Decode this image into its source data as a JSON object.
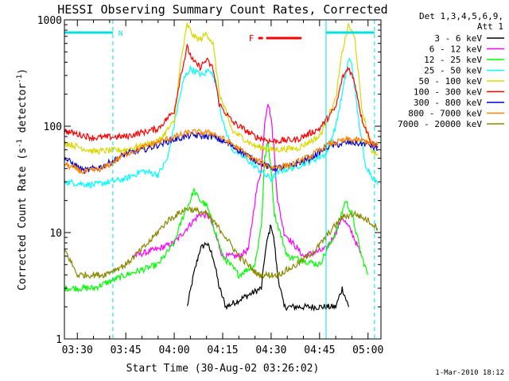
{
  "chart_data": {
    "type": "line",
    "title": "HESSI Observing Summary Count Rates, Corrected",
    "xlabel": "Start Time (30-Aug-02 03:26:02)",
    "ylabel": "Corrected Count Rate (s",
    "ylabel_sup1": "-1",
    "ylabel_mid": " detector",
    "ylabel_sup2": "-1",
    "ylabel_end": ")",
    "y_scale": "log",
    "ylim": [
      1,
      1000
    ],
    "y_ticks": [
      {
        "value": 1,
        "label": "1"
      },
      {
        "value": 10,
        "label": "10"
      },
      {
        "value": 100,
        "label": "100"
      },
      {
        "value": 1000,
        "label": "1000"
      }
    ],
    "xlim": [
      "03:26",
      "05:04"
    ],
    "x_ticks": [
      {
        "time": "03:30",
        "label": "03:30"
      },
      {
        "time": "03:45",
        "label": "03:45"
      },
      {
        "time": "04:00",
        "label": "04:00"
      },
      {
        "time": "04:15",
        "label": "04:15"
      },
      {
        "time": "04:30",
        "label": "04:30"
      },
      {
        "time": "04:45",
        "label": "04:45"
      },
      {
        "time": "05:00",
        "label": "05:00"
      }
    ],
    "legend_header": [
      "Det 1,3,4,5,6,9,",
      "Att 1"
    ],
    "series": [
      {
        "name": "3 - 6 keV",
        "color": "#000000",
        "points": [
          [
            "04:04",
            2
          ],
          [
            "04:06",
            4
          ],
          [
            "04:08",
            7
          ],
          [
            "04:10",
            8
          ],
          [
            "04:12",
            6
          ],
          [
            "04:14",
            3
          ],
          [
            "04:16",
            2
          ],
          [
            "04:27",
            3
          ],
          [
            "04:28",
            6
          ],
          [
            "04:29",
            9
          ],
          [
            "04:30",
            12
          ],
          [
            "04:31",
            8
          ],
          [
            "04:32",
            4
          ],
          [
            "04:34",
            2
          ],
          [
            "04:50",
            2
          ],
          [
            "04:52",
            3
          ],
          [
            "04:54",
            2
          ]
        ]
      },
      {
        "name": "6 - 12 keV",
        "color": "#ff00ff",
        "points": [
          [
            "03:47",
            6
          ],
          [
            "03:55",
            7
          ],
          [
            "04:00",
            8
          ],
          [
            "04:05",
            12
          ],
          [
            "04:08",
            15
          ],
          [
            "04:11",
            14
          ],
          [
            "04:13",
            9
          ],
          [
            "04:15",
            6
          ],
          [
            "04:20",
            6
          ],
          [
            "04:23",
            7
          ],
          [
            "04:25",
            20
          ],
          [
            "04:26",
            30
          ],
          [
            "04:27",
            40
          ],
          [
            "04:28",
            110
          ],
          [
            "04:29",
            170
          ],
          [
            "04:30",
            120
          ],
          [
            "04:31",
            55
          ],
          [
            "04:32",
            20
          ],
          [
            "04:34",
            10
          ],
          [
            "04:40",
            6
          ],
          [
            "04:47",
            7
          ],
          [
            "04:50",
            10
          ],
          [
            "04:52",
            14
          ],
          [
            "04:55",
            10
          ],
          [
            "04:58",
            6
          ]
        ]
      },
      {
        "name": "12 - 25 keV",
        "color": "#00ff00",
        "points": [
          [
            "03:26",
            3
          ],
          [
            "03:35",
            3
          ],
          [
            "03:45",
            4
          ],
          [
            "03:55",
            5
          ],
          [
            "04:00",
            8
          ],
          [
            "04:03",
            15
          ],
          [
            "04:05",
            20
          ],
          [
            "04:06",
            25
          ],
          [
            "04:08",
            20
          ],
          [
            "04:10",
            18
          ],
          [
            "04:12",
            12
          ],
          [
            "04:15",
            6
          ],
          [
            "04:20",
            4
          ],
          [
            "04:25",
            5
          ],
          [
            "04:27",
            12
          ],
          [
            "04:28",
            50
          ],
          [
            "04:29",
            70
          ],
          [
            "04:30",
            40
          ],
          [
            "04:31",
            15
          ],
          [
            "04:35",
            6
          ],
          [
            "04:45",
            5
          ],
          [
            "04:50",
            10
          ],
          [
            "04:53",
            20
          ],
          [
            "04:55",
            15
          ],
          [
            "04:58",
            6
          ],
          [
            "05:00",
            4
          ]
        ]
      },
      {
        "name": "25 - 50 keV",
        "color": "#00ffff",
        "points": [
          [
            "03:26",
            30
          ],
          [
            "03:35",
            28
          ],
          [
            "03:45",
            32
          ],
          [
            "03:50",
            38
          ],
          [
            "03:55",
            35
          ],
          [
            "03:58",
            50
          ],
          [
            "04:01",
            150
          ],
          [
            "04:03",
            280
          ],
          [
            "04:05",
            350
          ],
          [
            "04:07",
            320
          ],
          [
            "04:09",
            300
          ],
          [
            "04:11",
            350
          ],
          [
            "04:13",
            250
          ],
          [
            "04:15",
            110
          ],
          [
            "04:18",
            60
          ],
          [
            "04:22",
            50
          ],
          [
            "04:25",
            42
          ],
          [
            "04:28",
            35
          ],
          [
            "04:30",
            32
          ],
          [
            "04:33",
            38
          ],
          [
            "04:38",
            42
          ],
          [
            "04:43",
            48
          ],
          [
            "04:47",
            55
          ],
          [
            "04:50",
            100
          ],
          [
            "04:52",
            200
          ],
          [
            "04:54",
            430
          ],
          [
            "04:55",
            380
          ],
          [
            "04:57",
            120
          ],
          [
            "04:59",
            45
          ],
          [
            "05:01",
            35
          ],
          [
            "05:03",
            28
          ]
        ]
      },
      {
        "name": "50 - 100 keV",
        "color": "#d8d800",
        "points": [
          [
            "03:26",
            70
          ],
          [
            "03:35",
            58
          ],
          [
            "03:45",
            60
          ],
          [
            "03:55",
            72
          ],
          [
            "04:00",
            110
          ],
          [
            "04:02",
            400
          ],
          [
            "04:04",
            900
          ],
          [
            "04:06",
            700
          ],
          [
            "04:08",
            650
          ],
          [
            "04:10",
            750
          ],
          [
            "04:12",
            600
          ],
          [
            "04:14",
            200
          ],
          [
            "04:18",
            90
          ],
          [
            "04:25",
            65
          ],
          [
            "04:30",
            60
          ],
          [
            "04:38",
            62
          ],
          [
            "04:45",
            80
          ],
          [
            "04:50",
            180
          ],
          [
            "04:52",
            500
          ],
          [
            "04:54",
            900
          ],
          [
            "04:56",
            650
          ],
          [
            "04:58",
            150
          ],
          [
            "05:01",
            60
          ],
          [
            "05:03",
            55
          ]
        ]
      },
      {
        "name": "100 - 300 keV",
        "color": "#ff0000",
        "points": [
          [
            "03:26",
            90
          ],
          [
            "03:35",
            78
          ],
          [
            "03:45",
            80
          ],
          [
            "03:55",
            95
          ],
          [
            "04:00",
            140
          ],
          [
            "04:02",
            300
          ],
          [
            "04:04",
            550
          ],
          [
            "04:06",
            400
          ],
          [
            "04:08",
            360
          ],
          [
            "04:10",
            420
          ],
          [
            "04:12",
            350
          ],
          [
            "04:14",
            160
          ],
          [
            "04:18",
            110
          ],
          [
            "04:25",
            80
          ],
          [
            "04:30",
            72
          ],
          [
            "04:38",
            75
          ],
          [
            "04:45",
            95
          ],
          [
            "04:50",
            150
          ],
          [
            "04:52",
            280
          ],
          [
            "04:54",
            360
          ],
          [
            "04:56",
            250
          ],
          [
            "04:58",
            120
          ],
          [
            "05:01",
            70
          ],
          [
            "05:03",
            65
          ]
        ]
      },
      {
        "name": "300 - 800 keV",
        "color": "#0000cc",
        "points": [
          [
            "03:26",
            50
          ],
          [
            "03:32",
            38
          ],
          [
            "03:38",
            42
          ],
          [
            "03:45",
            55
          ],
          [
            "03:52",
            62
          ],
          [
            "03:58",
            72
          ],
          [
            "04:05",
            82
          ],
          [
            "04:12",
            80
          ],
          [
            "04:18",
            65
          ],
          [
            "04:24",
            50
          ],
          [
            "04:30",
            40
          ],
          [
            "04:36",
            42
          ],
          [
            "04:42",
            50
          ],
          [
            "04:48",
            65
          ],
          [
            "04:54",
            70
          ],
          [
            "05:00",
            68
          ],
          [
            "05:03",
            60
          ]
        ]
      },
      {
        "name": "800 - 7000 keV",
        "color": "#ff8000",
        "points": [
          [
            "03:26",
            44
          ],
          [
            "03:32",
            37
          ],
          [
            "03:38",
            40
          ],
          [
            "03:45",
            55
          ],
          [
            "03:52",
            66
          ],
          [
            "03:58",
            76
          ],
          [
            "04:05",
            88
          ],
          [
            "04:12",
            86
          ],
          [
            "04:18",
            68
          ],
          [
            "04:24",
            50
          ],
          [
            "04:30",
            41
          ],
          [
            "04:36",
            43
          ],
          [
            "04:42",
            52
          ],
          [
            "04:48",
            68
          ],
          [
            "04:54",
            75
          ],
          [
            "05:00",
            72
          ],
          [
            "05:03",
            66
          ]
        ]
      },
      {
        "name": "7000 - 20000 keV",
        "color": "#888800",
        "points": [
          [
            "03:26",
            7
          ],
          [
            "03:30",
            4
          ],
          [
            "03:38",
            4
          ],
          [
            "03:45",
            5
          ],
          [
            "03:52",
            8
          ],
          [
            "03:58",
            13
          ],
          [
            "04:04",
            17
          ],
          [
            "04:10",
            15
          ],
          [
            "04:15",
            10
          ],
          [
            "04:20",
            6
          ],
          [
            "04:26",
            4
          ],
          [
            "04:32",
            4
          ],
          [
            "04:38",
            5
          ],
          [
            "04:44",
            7
          ],
          [
            "04:48",
            10
          ],
          [
            "04:52",
            14
          ],
          [
            "04:56",
            15
          ],
          [
            "05:00",
            13
          ],
          [
            "05:03",
            11
          ]
        ]
      }
    ],
    "annotations": {
      "n_label": "N",
      "f_label": "F",
      "night_intervals": [
        [
          "03:26",
          "03:41"
        ],
        [
          "04:47",
          "05:02"
        ]
      ],
      "flare_interval": [
        "04:27",
        "04:34"
      ]
    },
    "timestamp": "1-Mar-2010 18:12"
  }
}
